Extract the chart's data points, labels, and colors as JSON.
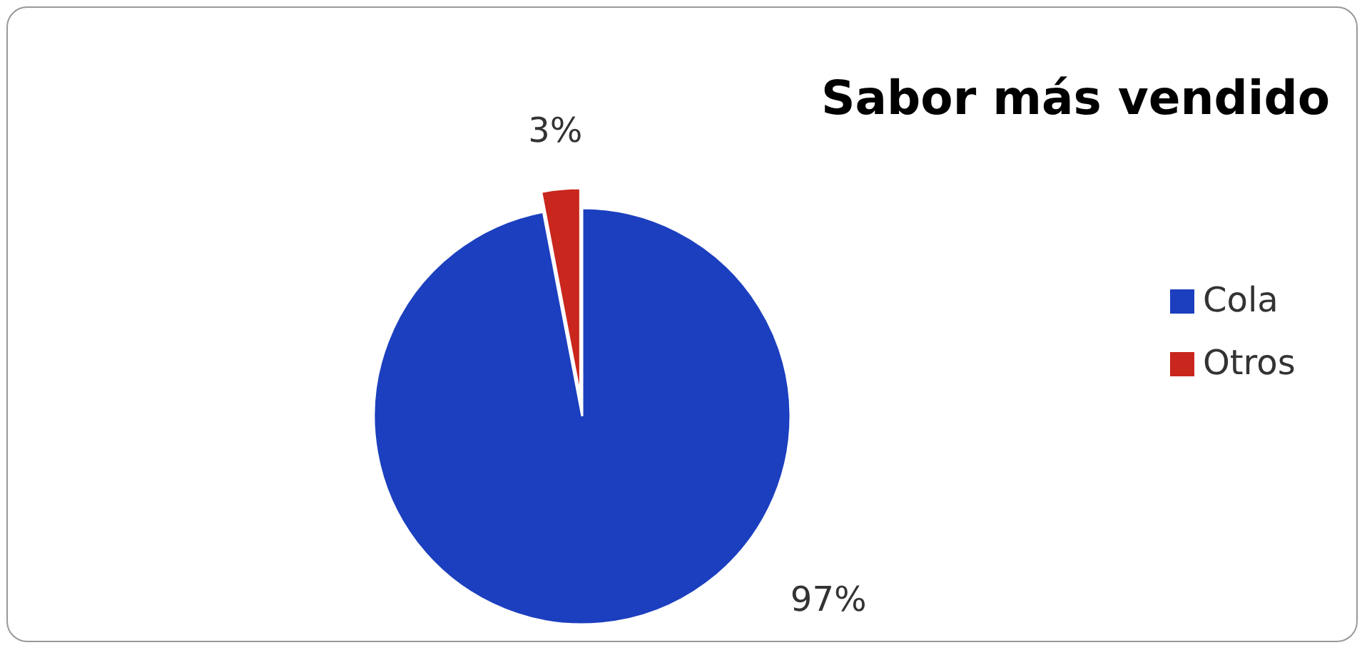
{
  "chart_data": {
    "type": "pie",
    "title": "Sabor más vendido",
    "categories": [
      "Cola",
      "Otros"
    ],
    "values": [
      97,
      3
    ],
    "colors": [
      "#1c3fbf",
      "#c9261d"
    ],
    "value_labels": [
      "97%",
      "3%"
    ],
    "legend": "right"
  }
}
